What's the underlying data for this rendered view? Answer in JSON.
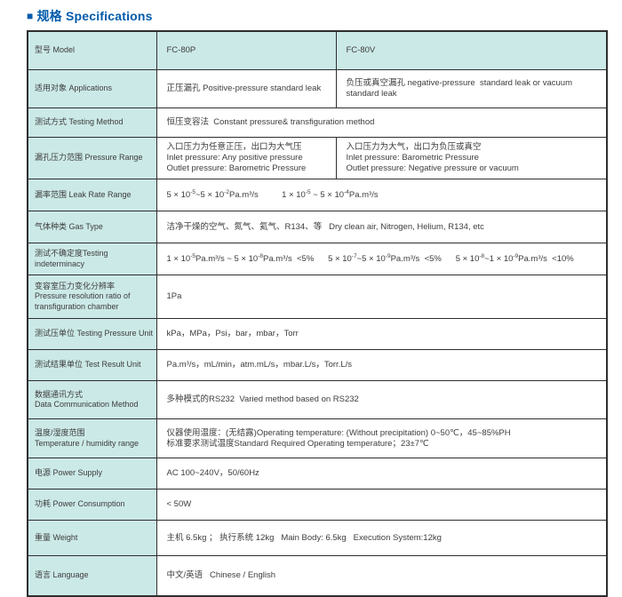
{
  "page": {
    "title_marker": "■",
    "title": "规格 Specifications"
  },
  "colors": {
    "accent_blue": "#005bab",
    "label_fill": "#cbe9e7",
    "border": "#2e2e2e",
    "text": "#3d3d3d"
  },
  "table": {
    "rows": [
      {
        "name": "model",
        "header": true,
        "label": "型号 Model",
        "cells": [
          "FC-80P",
          "FC-80V"
        ]
      },
      {
        "name": "applications",
        "label": "适用对象 Applications",
        "cells": [
          "正压漏孔 Positive-pressure standard leak",
          "负压或真空漏孔 negative-pressure  standard leak or vacuum  standard leak"
        ]
      },
      {
        "name": "testing-method",
        "label": "测试方式 Testing Method",
        "cells": [
          "恒压变容法  Constant pressure& transfiguration method"
        ]
      },
      {
        "name": "pressure-range",
        "label": "漏孔压力范围 Pressure Range",
        "cells": [
          "入口压力为任意正压，出口为大气压\nInlet pressure: Any positive pressure\nOutlet pressure: Barometric Pressure",
          "入口压力为大气，出口为负压或真空\nInlet pressure: Barometric Pressure\nOutlet pressure: Negative pressure or vacuum"
        ]
      },
      {
        "name": "leak-rate-range",
        "label": "漏率范围 Leak Rate Range",
        "cells": [
          "5 × 10^-5^~5 × 10^-2^Pa.m³/s          1 × 10^-5^ ~ 5 × 10^-4^Pa.m³/s"
        ]
      },
      {
        "name": "gas-type",
        "label": "气体种类 Gas Type",
        "cells": [
          "洁净干燥的空气、氮气、氦气、R134、等   Dry clean air, Nitrogen, Helium, R134, etc"
        ]
      },
      {
        "name": "testing-indeterminacy",
        "label": "测试不确定度Testing indeterminacy",
        "cells": [
          "1 × 10^-5^Pa.m³/s ~ 5 × 10^-8^Pa.m³/s  <5%      5 × 10^-7^~5 × 10^-9^Pa.m³/s  <5%      5 × 10^-8^~1 × 10^-9^Pa.m³/s  <10%"
        ]
      },
      {
        "name": "pressure-resolution",
        "label": "变容室压力变化分辨率\nPressure resolution ratio of\ntransfiguration chamber",
        "cells": [
          "1Pa"
        ]
      },
      {
        "name": "testing-pressure-unit",
        "label": "测试压单位 Testing Pressure Unit",
        "cells": [
          "kPa，MPa，Psi，bar，mbar，Torr"
        ]
      },
      {
        "name": "test-result-unit",
        "label": "测试结果单位 Test Result Unit",
        "cells": [
          "Pa.m³/s，mL/min，atm.mL/s，mbar.L/s，Torr.L/s"
        ]
      },
      {
        "name": "data-communication-method",
        "label": "数据通讯方式\nData Communication Method",
        "cells": [
          "多种模式的RS232  Varied method based on RS232"
        ]
      },
      {
        "name": "temperature-humidity-range",
        "label": "温度/湿度范围\nTemperature / humidity range",
        "cells": [
          "仪器使用温度：(无结露)Operating temperature: (Without precipitation) 0~50℃，45~85%PH\n标准要求测试温度Standard Required Operating temperature；23±7℃"
        ]
      },
      {
        "name": "power-supply",
        "label": "电源 Power Supply",
        "cells": [
          "AC 100~240V，50/60Hz"
        ]
      },
      {
        "name": "power-consumption",
        "label": "功耗 Power Consumption",
        "cells": [
          "< 50W"
        ]
      },
      {
        "name": "weight",
        "label": "重量 Weight",
        "cells": [
          "主机 6.5kg ； 执行系统 12kg   Main Body: 6.5kg   Execution System:12kg"
        ]
      },
      {
        "name": "language",
        "label": "语言 Language",
        "cells": [
          "中文/英语   Chinese / English"
        ]
      }
    ]
  }
}
